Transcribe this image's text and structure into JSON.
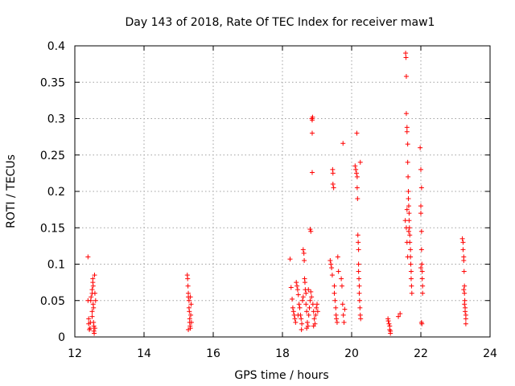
{
  "chart_data": {
    "type": "scatter",
    "title": "Day 143 of 2018, Rate Of TEC Index for receiver maw1",
    "xlabel": "GPS time / hours",
    "ylabel": "ROTI / TECUs",
    "xlim": [
      12,
      24
    ],
    "ylim": [
      0,
      0.4
    ],
    "xticks": [
      12,
      14,
      16,
      18,
      20,
      22,
      24
    ],
    "yticks": [
      0,
      0.05,
      0.1,
      0.15,
      0.2,
      0.25,
      0.3,
      0.35,
      0.4
    ],
    "xtick_labels": [
      "12",
      "14",
      "16",
      "18",
      "20",
      "22",
      "24"
    ],
    "ytick_labels": [
      "0",
      "0.05",
      "0.1",
      "0.15",
      "0.2",
      "0.25",
      "0.3",
      "0.35",
      "0.4"
    ],
    "grid": true,
    "marker": "+",
    "color": "#ff0000",
    "series": [
      {
        "name": "maw1",
        "points": [
          [
            12.38,
            0.11
          ],
          [
            12.38,
            0.05
          ],
          [
            12.4,
            0.025
          ],
          [
            12.4,
            0.018
          ],
          [
            12.42,
            0.01
          ],
          [
            12.44,
            0.012
          ],
          [
            12.45,
            0.02
          ],
          [
            12.46,
            0.05
          ],
          [
            12.47,
            0.055
          ],
          [
            12.5,
            0.065
          ],
          [
            12.5,
            0.06
          ],
          [
            12.5,
            0.035
          ],
          [
            12.5,
            0.028
          ],
          [
            12.52,
            0.08
          ],
          [
            12.52,
            0.075
          ],
          [
            12.53,
            0.07
          ],
          [
            12.53,
            0.045
          ],
          [
            12.54,
            0.04
          ],
          [
            12.54,
            0.02
          ],
          [
            12.55,
            0.015
          ],
          [
            12.55,
            0.008
          ],
          [
            12.56,
            0.005
          ],
          [
            12.57,
            0.085
          ],
          [
            12.58,
            0.06
          ],
          [
            12.58,
            0.012
          ],
          [
            12.6,
            0.05
          ],
          [
            15.25,
            0.085
          ],
          [
            15.26,
            0.08
          ],
          [
            15.27,
            0.07
          ],
          [
            15.28,
            0.06
          ],
          [
            15.28,
            0.055
          ],
          [
            15.3,
            0.05
          ],
          [
            15.3,
            0.04
          ],
          [
            15.31,
            0.035
          ],
          [
            15.32,
            0.025
          ],
          [
            15.32,
            0.02
          ],
          [
            15.33,
            0.015
          ],
          [
            15.34,
            0.012
          ],
          [
            15.35,
            0.03
          ],
          [
            15.36,
            0.045
          ],
          [
            15.37,
            0.02
          ],
          [
            15.28,
            0.01
          ],
          [
            15.34,
            0.055
          ],
          [
            18.22,
            0.107
          ],
          [
            18.25,
            0.068
          ],
          [
            18.28,
            0.052
          ],
          [
            18.3,
            0.04
          ],
          [
            18.32,
            0.035
          ],
          [
            18.34,
            0.03
          ],
          [
            18.36,
            0.025
          ],
          [
            18.38,
            0.02
          ],
          [
            18.4,
            0.075
          ],
          [
            18.42,
            0.07
          ],
          [
            18.44,
            0.065
          ],
          [
            18.46,
            0.058
          ],
          [
            18.48,
            0.045
          ],
          [
            18.5,
            0.04
          ],
          [
            18.52,
            0.03
          ],
          [
            18.54,
            0.025
          ],
          [
            18.56,
            0.018
          ],
          [
            18.58,
            0.05
          ],
          [
            18.6,
            0.055
          ],
          [
            18.6,
            0.12
          ],
          [
            18.62,
            0.115
          ],
          [
            18.63,
            0.105
          ],
          [
            18.64,
            0.08
          ],
          [
            18.65,
            0.075
          ],
          [
            18.66,
            0.065
          ],
          [
            18.68,
            0.045
          ],
          [
            18.7,
            0.035
          ],
          [
            18.72,
            0.02
          ],
          [
            18.74,
            0.015
          ],
          [
            18.76,
            0.03
          ],
          [
            18.78,
            0.04
          ],
          [
            18.8,
            0.05
          ],
          [
            18.8,
            0.148
          ],
          [
            18.82,
            0.145
          ],
          [
            18.82,
            0.062
          ],
          [
            18.84,
            0.055
          ],
          [
            18.85,
            0.3
          ],
          [
            18.86,
            0.298
          ],
          [
            18.86,
            0.28
          ],
          [
            18.86,
            0.226
          ],
          [
            18.87,
            0.302
          ],
          [
            18.88,
            0.045
          ],
          [
            18.9,
            0.035
          ],
          [
            18.92,
            0.025
          ],
          [
            18.94,
            0.018
          ],
          [
            18.96,
            0.03
          ],
          [
            18.98,
            0.04
          ],
          [
            19.0,
            0.045
          ],
          [
            19.02,
            0.035
          ],
          [
            18.55,
            0.01
          ],
          [
            18.7,
            0.012
          ],
          [
            18.9,
            0.015
          ],
          [
            18.45,
            0.03
          ],
          [
            18.68,
            0.06
          ],
          [
            18.75,
            0.065
          ],
          [
            19.38,
            0.105
          ],
          [
            19.4,
            0.1
          ],
          [
            19.42,
            0.095
          ],
          [
            19.44,
            0.085
          ],
          [
            19.45,
            0.23
          ],
          [
            19.46,
            0.225
          ],
          [
            19.46,
            0.21
          ],
          [
            19.48,
            0.205
          ],
          [
            19.5,
            0.07
          ],
          [
            19.5,
            0.06
          ],
          [
            19.52,
            0.05
          ],
          [
            19.54,
            0.04
          ],
          [
            19.55,
            0.03
          ],
          [
            19.56,
            0.025
          ],
          [
            19.58,
            0.02
          ],
          [
            19.6,
            0.11
          ],
          [
            19.62,
            0.09
          ],
          [
            19.7,
            0.08
          ],
          [
            19.72,
            0.07
          ],
          [
            19.74,
            0.045
          ],
          [
            19.75,
            0.266
          ],
          [
            19.76,
            0.03
          ],
          [
            19.78,
            0.02
          ],
          [
            19.8,
            0.038
          ],
          [
            20.1,
            0.235
          ],
          [
            20.12,
            0.23
          ],
          [
            20.14,
            0.225
          ],
          [
            20.15,
            0.28
          ],
          [
            20.16,
            0.22
          ],
          [
            20.16,
            0.205
          ],
          [
            20.17,
            0.19
          ],
          [
            20.18,
            0.14
          ],
          [
            20.19,
            0.13
          ],
          [
            20.2,
            0.12
          ],
          [
            20.2,
            0.1
          ],
          [
            20.2,
            0.09
          ],
          [
            20.21,
            0.08
          ],
          [
            20.22,
            0.07
          ],
          [
            20.22,
            0.06
          ],
          [
            20.23,
            0.05
          ],
          [
            20.24,
            0.04
          ],
          [
            20.25,
            0.03
          ],
          [
            20.26,
            0.025
          ],
          [
            20.25,
            0.24
          ],
          [
            21.05,
            0.025
          ],
          [
            21.06,
            0.022
          ],
          [
            21.08,
            0.018
          ],
          [
            21.1,
            0.015
          ],
          [
            21.1,
            0.01
          ],
          [
            21.12,
            0.008
          ],
          [
            21.12,
            0.005
          ],
          [
            21.35,
            0.028
          ],
          [
            21.4,
            0.032
          ],
          [
            21.56,
            0.39
          ],
          [
            21.57,
            0.384
          ],
          [
            21.58,
            0.358
          ],
          [
            21.58,
            0.307
          ],
          [
            21.6,
            0.288
          ],
          [
            21.6,
            0.282
          ],
          [
            21.62,
            0.265
          ],
          [
            21.62,
            0.24
          ],
          [
            21.63,
            0.22
          ],
          [
            21.64,
            0.2
          ],
          [
            21.64,
            0.19
          ],
          [
            21.65,
            0.18
          ],
          [
            21.66,
            0.17
          ],
          [
            21.66,
            0.16
          ],
          [
            21.67,
            0.15
          ],
          [
            21.68,
            0.14
          ],
          [
            21.68,
            0.13
          ],
          [
            21.7,
            0.12
          ],
          [
            21.7,
            0.11
          ],
          [
            21.71,
            0.1
          ],
          [
            21.72,
            0.09
          ],
          [
            21.72,
            0.08
          ],
          [
            21.73,
            0.07
          ],
          [
            21.74,
            0.06
          ],
          [
            21.58,
            0.15
          ],
          [
            21.6,
            0.13
          ],
          [
            21.62,
            0.11
          ],
          [
            21.6,
            0.175
          ],
          [
            21.65,
            0.145
          ],
          [
            21.55,
            0.16
          ],
          [
            21.98,
            0.26
          ],
          [
            22.0,
            0.23
          ],
          [
            22.02,
            0.205
          ],
          [
            22.0,
            0.18
          ],
          [
            22.0,
            0.17
          ],
          [
            22.02,
            0.145
          ],
          [
            22.02,
            0.12
          ],
          [
            22.03,
            0.1
          ],
          [
            22.04,
            0.09
          ],
          [
            22.04,
            0.08
          ],
          [
            22.05,
            0.07
          ],
          [
            22.05,
            0.06
          ],
          [
            22.02,
            0.02
          ],
          [
            22.03,
            0.018
          ],
          [
            22.0,
            0.095
          ],
          [
            23.2,
            0.135
          ],
          [
            23.22,
            0.13
          ],
          [
            23.22,
            0.12
          ],
          [
            23.24,
            0.11
          ],
          [
            23.24,
            0.105
          ],
          [
            23.25,
            0.09
          ],
          [
            23.26,
            0.07
          ],
          [
            23.26,
            0.06
          ],
          [
            23.27,
            0.05
          ],
          [
            23.28,
            0.04
          ],
          [
            23.28,
            0.035
          ],
          [
            23.3,
            0.03
          ],
          [
            23.3,
            0.025
          ],
          [
            23.3,
            0.018
          ],
          [
            23.26,
            0.045
          ],
          [
            23.24,
            0.065
          ]
        ]
      }
    ]
  }
}
